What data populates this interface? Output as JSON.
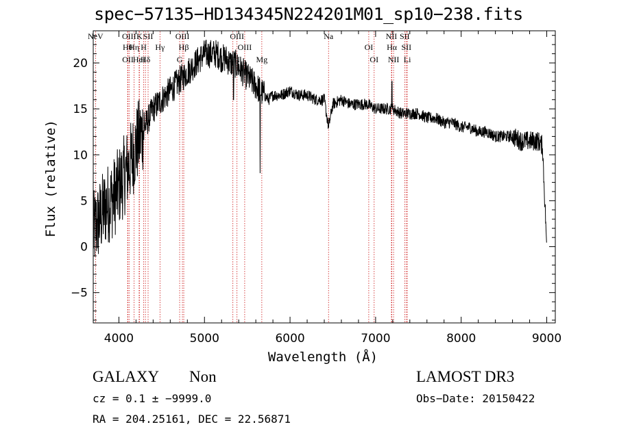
{
  "chart_data": {
    "type": "line",
    "title": "spec−57135−HD134345N224201M01_sp10−238.fits",
    "xlabel": "Wavelength (Å)",
    "ylabel": "Flux (relative)",
    "xlim": [
      3700,
      9100
    ],
    "ylim": [
      -8.3,
      23.5
    ],
    "x_ticks": [
      4000,
      5000,
      6000,
      7000,
      8000,
      9000
    ],
    "y_ticks": [
      -5,
      0,
      5,
      10,
      15,
      20
    ],
    "y_tick_labels": [
      "−5",
      "0",
      "5",
      "10",
      "15",
      "20"
    ],
    "series": [
      {
        "name": "flux",
        "x": [
          3700,
          3750,
          3800,
          3850,
          3900,
          3950,
          4000,
          4050,
          4100,
          4150,
          4200,
          4250,
          4300,
          4350,
          4400,
          4450,
          4500,
          4550,
          4600,
          4650,
          4700,
          4750,
          4800,
          4850,
          4900,
          4950,
          5000,
          5050,
          5100,
          5150,
          5200,
          5250,
          5300,
          5350,
          5400,
          5450,
          5500,
          5550,
          5600,
          5650,
          5700,
          5750,
          5800,
          5900,
          6000,
          6100,
          6200,
          6300,
          6400,
          6450,
          6500,
          6600,
          6700,
          6800,
          6900,
          7000,
          7100,
          7200,
          7300,
          7400,
          7500,
          7600,
          7700,
          7800,
          7900,
          8000,
          8100,
          8200,
          8300,
          8400,
          8500,
          8600,
          8700,
          8800,
          8900,
          8950,
          9000
        ],
        "values": [
          1.5,
          2.5,
          3.5,
          4.5,
          5.0,
          5.5,
          6.5,
          7.5,
          8.5,
          9.5,
          11.0,
          12.0,
          13.0,
          14.0,
          15.0,
          15.5,
          16.0,
          16.5,
          17.0,
          17.5,
          18.0,
          18.5,
          19.0,
          19.5,
          20.0,
          20.5,
          21.0,
          21.0,
          21.0,
          21.0,
          20.5,
          20.5,
          20.0,
          20.0,
          19.5,
          19.0,
          18.5,
          18.0,
          17.5,
          17.0,
          16.5,
          16.0,
          16.5,
          16.5,
          17.0,
          16.5,
          16.5,
          16.0,
          16.0,
          13.0,
          15.5,
          16.0,
          15.5,
          15.5,
          15.5,
          15.0,
          15.0,
          15.0,
          14.5,
          14.5,
          14.5,
          14.0,
          14.0,
          13.5,
          13.5,
          13.0,
          13.0,
          12.5,
          12.5,
          12.0,
          12.0,
          12.0,
          11.5,
          11.5,
          11.5,
          11.0,
          0.0
        ]
      }
    ],
    "line_markers": [
      {
        "wavelength": 3727,
        "label": "NeV"
      },
      {
        "wavelength": 4102,
        "label": "Hθ"
      },
      {
        "wavelength": 4105,
        "label": "OII"
      },
      {
        "wavelength": 4119,
        "label": "OIII"
      },
      {
        "wavelength": 4178,
        "label": "Hη"
      },
      {
        "wavelength": 4236,
        "label": "HeI"
      },
      {
        "wavelength": 4240,
        "label": "K"
      },
      {
        "wavelength": 4290,
        "label": "H"
      },
      {
        "wavelength": 4310,
        "label": "Hδ"
      },
      {
        "wavelength": 4341,
        "label": "SII"
      },
      {
        "wavelength": 4480,
        "label": "Hγ"
      },
      {
        "wavelength": 4710,
        "label": "G"
      },
      {
        "wavelength": 4742,
        "label": "OIII"
      },
      {
        "wavelength": 4758,
        "label": "Hβ"
      },
      {
        "wavelength": 5332,
        "label": "OIII"
      },
      {
        "wavelength": 5380,
        "label": "OIII"
      },
      {
        "wavelength": 5470,
        "label": "OIII"
      },
      {
        "wavelength": 5670,
        "label": "Mg"
      },
      {
        "wavelength": 6450,
        "label": "Na"
      },
      {
        "wavelength": 6920,
        "label": "OI"
      },
      {
        "wavelength": 6983,
        "label": "OI"
      },
      {
        "wavelength": 7185,
        "label": "NII"
      },
      {
        "wavelength": 7190,
        "label": "Hα"
      },
      {
        "wavelength": 7210,
        "label": "NII"
      },
      {
        "wavelength": 7340,
        "label": "SII"
      },
      {
        "wavelength": 7360,
        "label": "SII"
      },
      {
        "wavelength": 7370,
        "label": "Li"
      }
    ]
  },
  "footer": {
    "object_class": "GALAXY",
    "subclass": "Non",
    "survey": "LAMOST DR3",
    "redshift_line": "cz = 0.1 ± −9999.0",
    "obs_date_line": "Obs−Date: 20150422",
    "coords_line": "RA = 204.25161, DEC =  22.56871"
  }
}
